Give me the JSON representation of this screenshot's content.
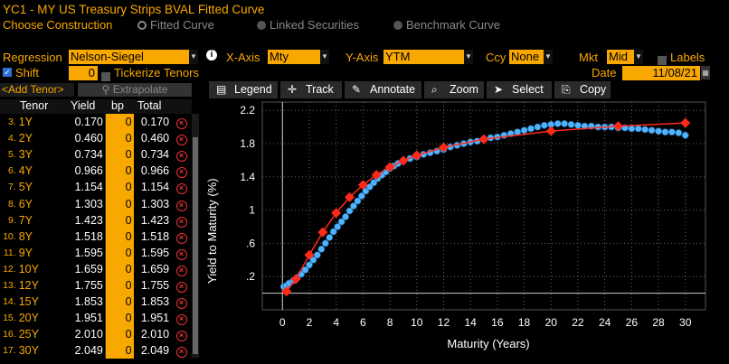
{
  "title_bar": {
    "code": "YC1",
    "title": "YC1 - MY US Treasury Strips BVAL Fitted Curve"
  },
  "construction": {
    "label": "Choose Construction",
    "options": [
      {
        "label": "Fitted Curve",
        "selected": true
      },
      {
        "label": "Linked Securities",
        "selected": false
      },
      {
        "label": "Benchmark Curve",
        "selected": false
      }
    ]
  },
  "controls": {
    "regression_label": "Regression",
    "regression_value": "Nelson-Siegel",
    "xaxis_label": "X-Axis",
    "xaxis_value": "Mty",
    "yaxis_label": "Y-Axis",
    "yaxis_value": "YTM",
    "ccy_label": "Ccy",
    "ccy_value": "None",
    "mkt_label": "Mkt",
    "mkt_value": "Mid",
    "labels_label": "Labels",
    "shift_label": "Shift",
    "shift_value": "0",
    "tickerize_label": "Tickerize Tenors",
    "date_label": "Date",
    "date_value": "11/08/21",
    "add_tenor": "<Add Tenor>",
    "extrapolate": "Extrapolate"
  },
  "toolbar": {
    "legend": "Legend",
    "track": "Track",
    "annotate": "Annotate",
    "zoom": "Zoom",
    "select": "Select",
    "copy": "Copy"
  },
  "table": {
    "headers": [
      "Tenor",
      "Yield",
      "bp",
      "Total"
    ],
    "rows": [
      {
        "num": "3.",
        "tenor": "1Y",
        "yield": "0.170",
        "bp": "0",
        "total": "0.170"
      },
      {
        "num": "4.",
        "tenor": "2Y",
        "yield": "0.460",
        "bp": "0",
        "total": "0.460"
      },
      {
        "num": "5.",
        "tenor": "3Y",
        "yield": "0.734",
        "bp": "0",
        "total": "0.734"
      },
      {
        "num": "6.",
        "tenor": "4Y",
        "yield": "0.966",
        "bp": "0",
        "total": "0.966"
      },
      {
        "num": "7.",
        "tenor": "5Y",
        "yield": "1.154",
        "bp": "0",
        "total": "1.154"
      },
      {
        "num": "8.",
        "tenor": "6Y",
        "yield": "1.303",
        "bp": "0",
        "total": "1.303"
      },
      {
        "num": "9.",
        "tenor": "7Y",
        "yield": "1.423",
        "bp": "0",
        "total": "1.423"
      },
      {
        "num": "10.",
        "tenor": "8Y",
        "yield": "1.518",
        "bp": "0",
        "total": "1.518"
      },
      {
        "num": "11.",
        "tenor": "9Y",
        "yield": "1.595",
        "bp": "0",
        "total": "1.595"
      },
      {
        "num": "12.",
        "tenor": "10Y",
        "yield": "1.659",
        "bp": "0",
        "total": "1.659"
      },
      {
        "num": "13.",
        "tenor": "12Y",
        "yield": "1.755",
        "bp": "0",
        "total": "1.755"
      },
      {
        "num": "14.",
        "tenor": "15Y",
        "yield": "1.853",
        "bp": "0",
        "total": "1.853"
      },
      {
        "num": "15.",
        "tenor": "20Y",
        "yield": "1.951",
        "bp": "0",
        "total": "1.951"
      },
      {
        "num": "16.",
        "tenor": "25Y",
        "yield": "2.010",
        "bp": "0",
        "total": "2.010"
      },
      {
        "num": "17.",
        "tenor": "30Y",
        "yield": "2.049",
        "bp": "0",
        "total": "2.049"
      }
    ]
  },
  "colors": {
    "amber": "#f8a800",
    "fitted": "#ff2a1a",
    "points": "#4fb4ff"
  },
  "chart_data": {
    "type": "scatter",
    "xlabel": "Maturity (Years)",
    "ylabel": "Yield to Maturity (%)",
    "xlim": [
      -1.5,
      31.5
    ],
    "ylim": [
      -0.2,
      2.3
    ],
    "xticks": [
      "0",
      "2",
      "4",
      "6",
      "8",
      "10",
      "12",
      "14",
      "16",
      "18",
      "20",
      "22",
      "24",
      "26",
      "28",
      "30"
    ],
    "yticks": [
      ".2",
      ".6",
      "1",
      "1.4",
      "1.8",
      "2.2"
    ],
    "series": [
      {
        "kind": "fitted",
        "x": [
          0.3,
          1,
          2,
          3,
          4,
          5,
          6,
          7,
          8,
          9,
          10,
          12,
          15,
          20,
          25,
          30
        ],
        "y": [
          0.02,
          0.17,
          0.46,
          0.734,
          0.966,
          1.154,
          1.303,
          1.423,
          1.518,
          1.595,
          1.659,
          1.755,
          1.853,
          1.951,
          2.01,
          2.049
        ]
      },
      {
        "kind": "securities",
        "x": [
          0.1,
          0.3,
          0.5,
          0.8,
          1.1,
          1.4,
          1.7,
          2.0,
          2.3,
          2.6,
          2.9,
          3.2,
          3.5,
          3.8,
          4.1,
          4.4,
          4.7,
          5.0,
          5.3,
          5.6,
          5.9,
          6.2,
          6.5,
          6.8,
          7.1,
          7.4,
          7.7,
          8.0,
          8.3,
          8.6,
          9.0,
          9.5,
          10.0,
          10.5,
          11.0,
          11.5,
          12.0,
          12.5,
          13.0,
          13.5,
          14.0,
          14.5,
          15.0,
          15.5,
          16.0,
          16.5,
          17.0,
          17.5,
          18.0,
          18.5,
          19.0,
          19.5,
          20.0,
          20.5,
          21.0,
          21.5,
          22.0,
          22.5,
          23.0,
          23.5,
          24.0,
          24.5,
          25.0,
          25.5,
          26.0,
          26.5,
          27.0,
          27.5,
          28.0,
          28.5,
          29.0,
          29.5,
          30.0
        ],
        "y": [
          0.08,
          0.09,
          0.12,
          0.15,
          0.19,
          0.23,
          0.28,
          0.34,
          0.4,
          0.46,
          0.53,
          0.6,
          0.67,
          0.74,
          0.8,
          0.86,
          0.92,
          0.99,
          1.05,
          1.11,
          1.17,
          1.23,
          1.28,
          1.33,
          1.38,
          1.42,
          1.46,
          1.5,
          1.53,
          1.56,
          1.59,
          1.62,
          1.64,
          1.67,
          1.69,
          1.71,
          1.73,
          1.76,
          1.78,
          1.8,
          1.82,
          1.83,
          1.85,
          1.87,
          1.88,
          1.9,
          1.92,
          1.94,
          1.96,
          1.98,
          2.0,
          2.02,
          2.03,
          2.04,
          2.04,
          2.03,
          2.02,
          2.01,
          2.01,
          2.0,
          2.0,
          2.0,
          1.99,
          1.99,
          1.98,
          1.98,
          1.97,
          1.96,
          1.95,
          1.94,
          1.94,
          1.93,
          1.9
        ]
      }
    ]
  }
}
